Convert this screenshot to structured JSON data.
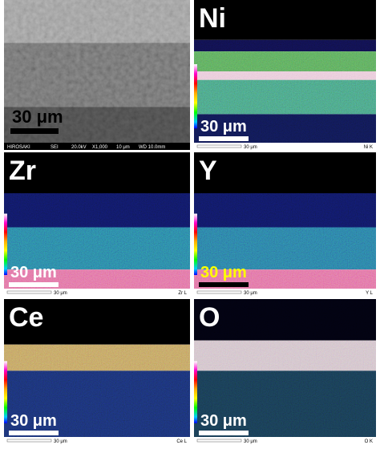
{
  "sem": {
    "scale": "30 μm",
    "info": [
      "HIROSAKI",
      "SEI",
      "20.0kV",
      "X1,000",
      "10 μm",
      "WD 10.0mm"
    ]
  },
  "maps": [
    {
      "element": "Ni",
      "scale": "30 μm",
      "footer_scale": "30 μm",
      "line": "Ni K"
    },
    {
      "element": "Zr",
      "scale": "30 μm",
      "footer_scale": "30 μm",
      "line": "Zr L"
    },
    {
      "element": "Y",
      "scale": "30 μm",
      "footer_scale": "30 μm",
      "line": "Y L"
    },
    {
      "element": "Ce",
      "scale": "30 μm",
      "footer_scale": "30 μm",
      "line": "Ce L"
    },
    {
      "element": "O",
      "scale": "30 μm",
      "footer_scale": "30 μm",
      "line": "O K"
    }
  ]
}
